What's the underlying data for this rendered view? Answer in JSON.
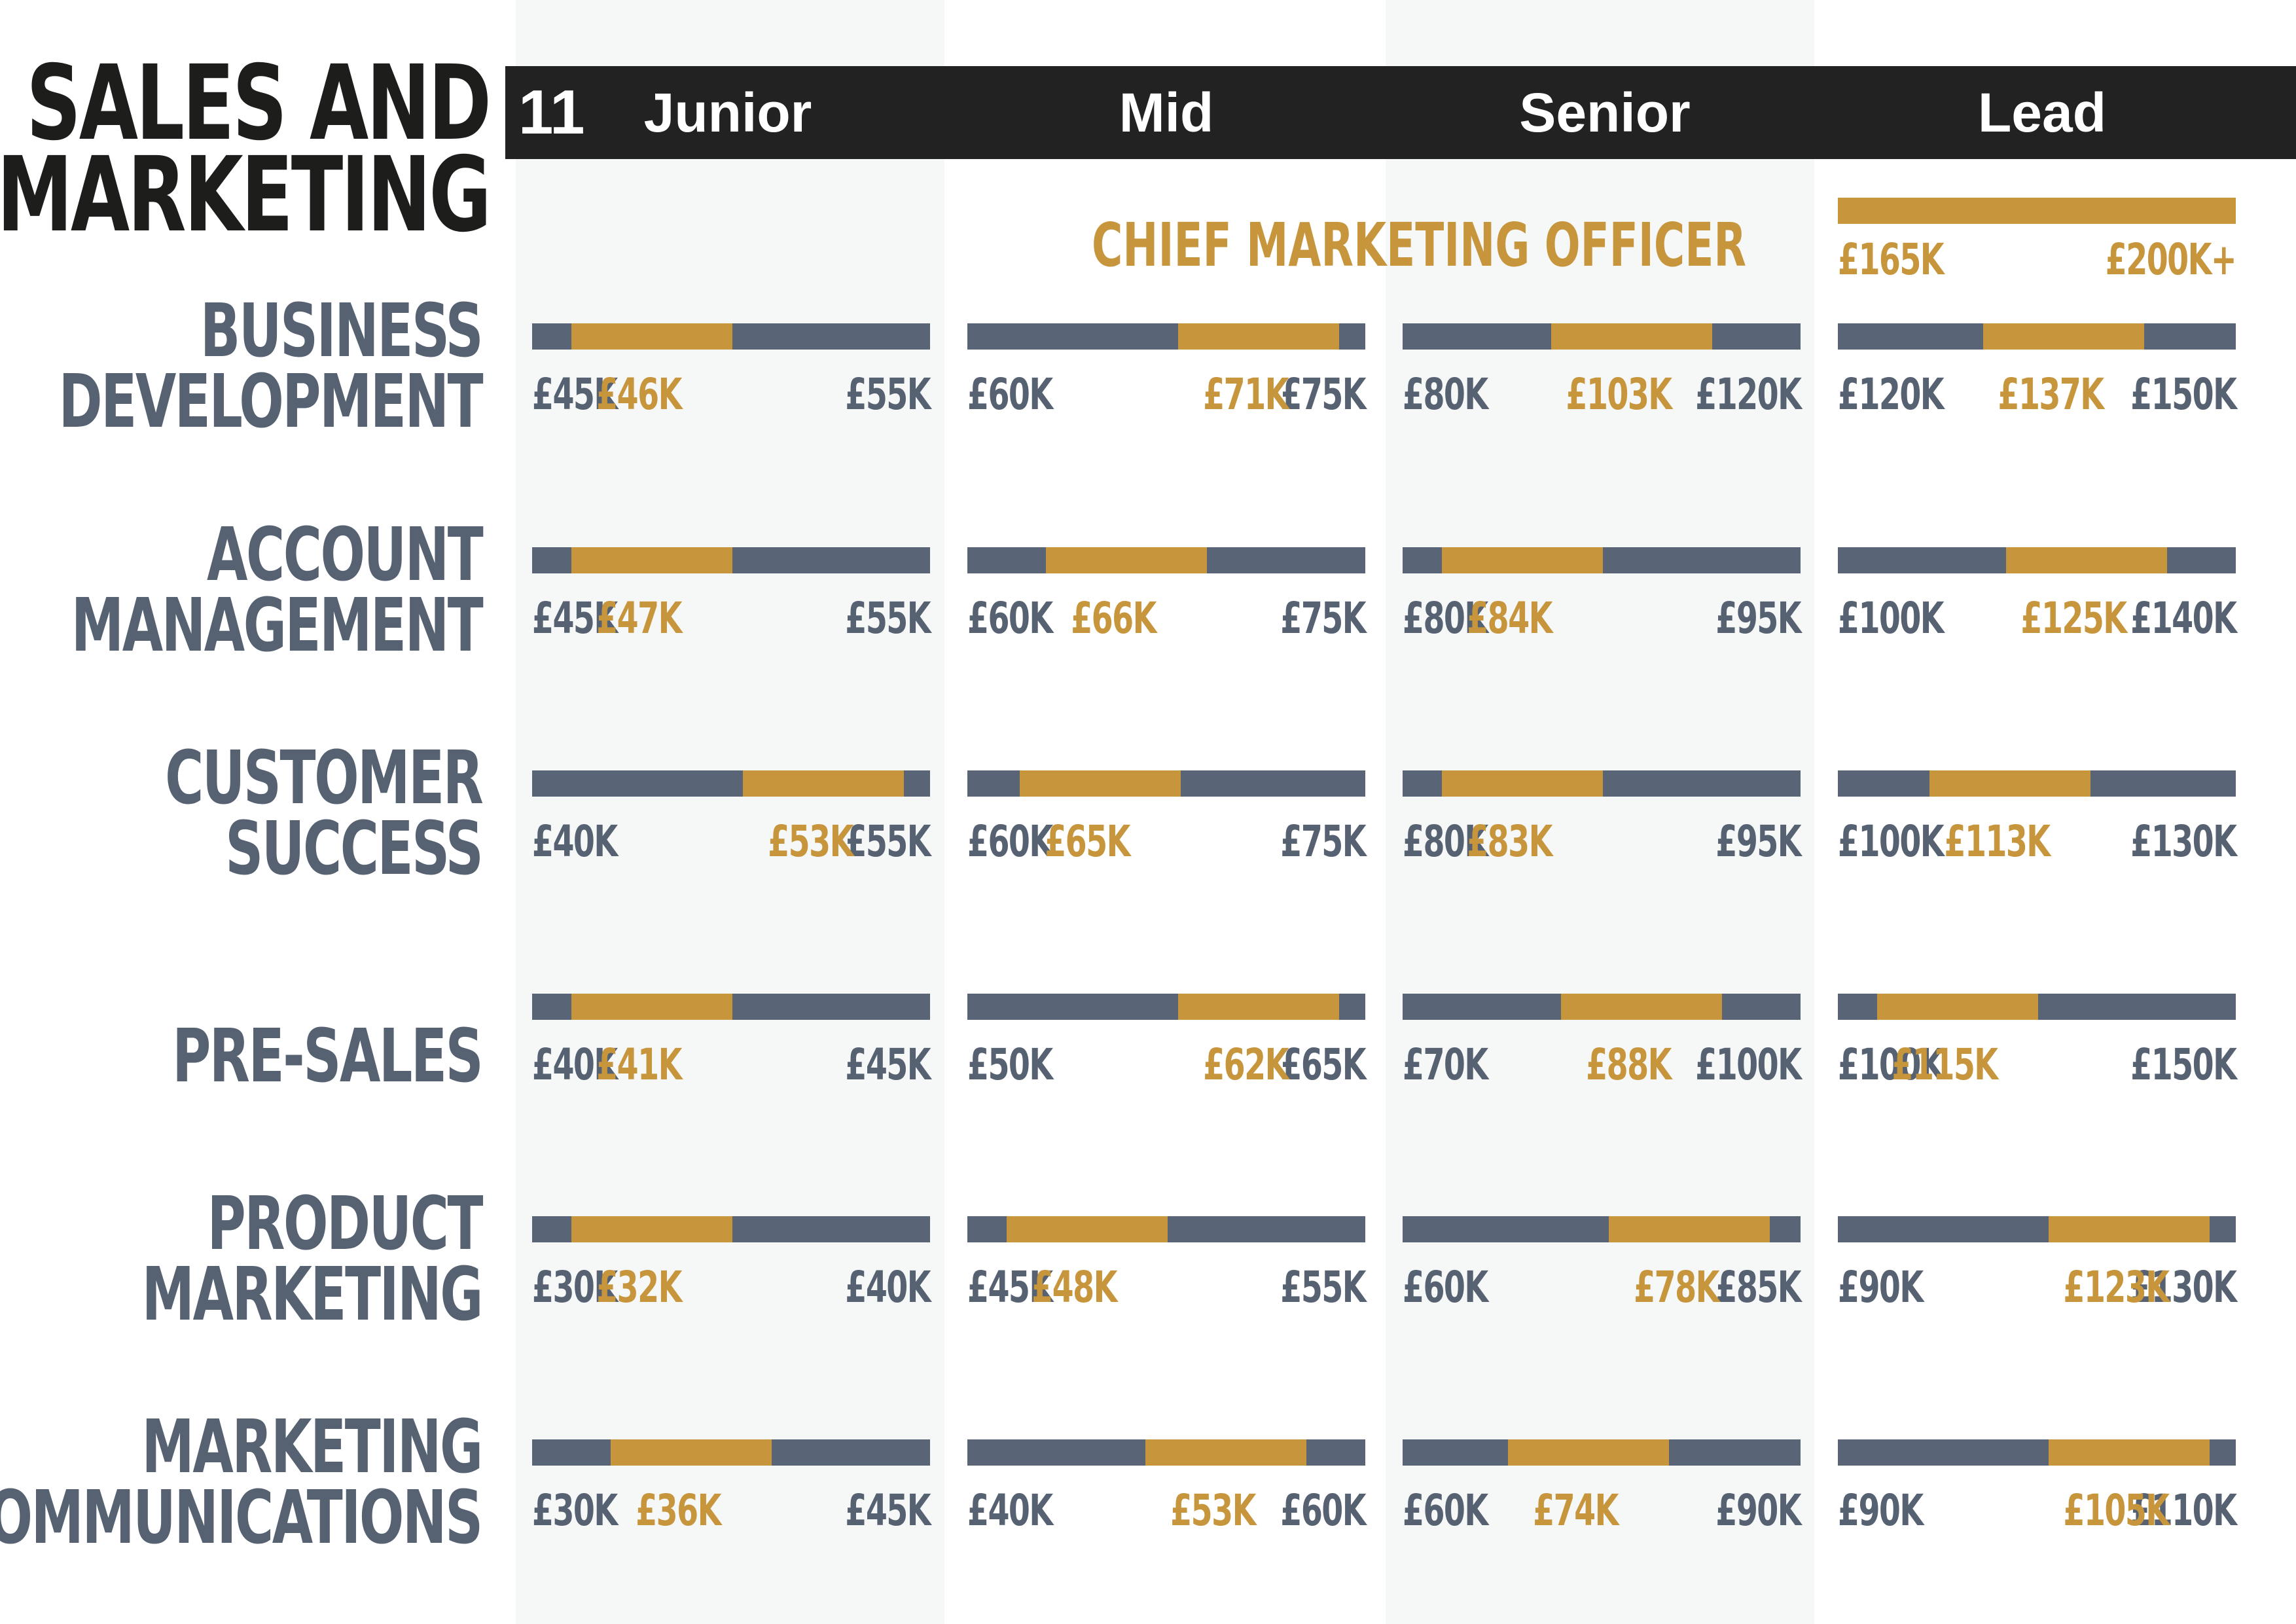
{
  "page": {
    "title_line1": "SALES AND",
    "title_line2": "MARKETING",
    "page_number": "11"
  },
  "colors": {
    "accent_gold": "#c7953b",
    "slate": "#596577",
    "header_black": "#222222",
    "column_shade": "#f6f7f7"
  },
  "chart_data": {
    "type": "range-bar",
    "levels": [
      "Junior",
      "Mid",
      "Senior",
      "Lead"
    ],
    "cmo": {
      "label": "CHIEF MARKETING OFFICER",
      "min": "£165K",
      "max": "£200K+"
    },
    "roles": [
      {
        "label_lines": [
          "BUSINESS",
          "DEVELOPMENT"
        ],
        "ranges": [
          {
            "min": 45,
            "avg": 46,
            "max": 55,
            "min_label": "£45K",
            "avg_label": "£46K",
            "max_label": "£55K"
          },
          {
            "min": 60,
            "avg": 71,
            "max": 75,
            "min_label": "£60K",
            "avg_label": "£71K",
            "max_label": "£75K"
          },
          {
            "min": 80,
            "avg": 103,
            "max": 120,
            "min_label": "£80K",
            "avg_label": "£103K",
            "max_label": "£120K"
          },
          {
            "min": 120,
            "avg": 137,
            "max": 150,
            "min_label": "£120K",
            "avg_label": "£137K",
            "max_label": "£150K"
          }
        ]
      },
      {
        "label_lines": [
          "ACCOUNT",
          "MANAGEMENT"
        ],
        "ranges": [
          {
            "min": 45,
            "avg": 47,
            "max": 55,
            "min_label": "£45K",
            "avg_label": "£47K",
            "max_label": "£55K"
          },
          {
            "min": 60,
            "avg": 66,
            "max": 75,
            "min_label": "£60K",
            "avg_label": "£66K",
            "max_label": "£75K"
          },
          {
            "min": 80,
            "avg": 84,
            "max": 95,
            "min_label": "£80K",
            "avg_label": "£84K",
            "max_label": "£95K"
          },
          {
            "min": 100,
            "avg": 125,
            "max": 140,
            "min_label": "£100K",
            "avg_label": "£125K",
            "max_label": "£140K"
          }
        ]
      },
      {
        "label_lines": [
          "CUSTOMER",
          "SUCCESS"
        ],
        "ranges": [
          {
            "min": 40,
            "avg": 53,
            "max": 55,
            "min_label": "£40K",
            "avg_label": "£53K",
            "max_label": "£55K"
          },
          {
            "min": 60,
            "avg": 65,
            "max": 75,
            "min_label": "£60K",
            "avg_label": "£65K",
            "max_label": "£75K"
          },
          {
            "min": 80,
            "avg": 83,
            "max": 95,
            "min_label": "£80K",
            "avg_label": "£83K",
            "max_label": "£95K"
          },
          {
            "min": 100,
            "avg": 113,
            "max": 130,
            "min_label": "£100K",
            "avg_label": "£113K",
            "max_label": "£130K"
          }
        ]
      },
      {
        "label_lines": [
          "PRE-SALES"
        ],
        "ranges": [
          {
            "min": 40,
            "avg": 41,
            "max": 45,
            "min_label": "£40K",
            "avg_label": "£41K",
            "max_label": "£45K"
          },
          {
            "min": 50,
            "avg": 62,
            "max": 65,
            "min_label": "£50K",
            "avg_label": "£62K",
            "max_label": "£65K"
          },
          {
            "min": 70,
            "avg": 88,
            "max": 100,
            "min_label": "£70K",
            "avg_label": "£88K",
            "max_label": "£100K"
          },
          {
            "min": 100,
            "avg": 115,
            "max": 150,
            "min_label": "£100K",
            "avg_label": "£115K",
            "max_label": "£150K"
          }
        ]
      },
      {
        "label_lines": [
          "PRODUCT",
          "MARKETING"
        ],
        "ranges": [
          {
            "min": 30,
            "avg": 32,
            "max": 40,
            "min_label": "£30K",
            "avg_label": "£32K",
            "max_label": "£40K"
          },
          {
            "min": 45,
            "avg": 48,
            "max": 55,
            "min_label": "£45K",
            "avg_label": "£48K",
            "max_label": "£55K"
          },
          {
            "min": 60,
            "avg": 78,
            "max": 85,
            "min_label": "£60K",
            "avg_label": "£78K",
            "max_label": "£85K"
          },
          {
            "min": 90,
            "avg": 123,
            "max": 130,
            "min_label": "£90K",
            "avg_label": "£123K",
            "max_label": "£130K"
          }
        ]
      },
      {
        "label_lines": [
          "MARKETING",
          "COMMUNICATIONS"
        ],
        "ranges": [
          {
            "min": 30,
            "avg": 36,
            "max": 45,
            "min_label": "£30K",
            "avg_label": "£36K",
            "max_label": "£45K"
          },
          {
            "min": 40,
            "avg": 53,
            "max": 60,
            "min_label": "£40K",
            "avg_label": "£53K",
            "max_label": "£60K"
          },
          {
            "min": 60,
            "avg": 74,
            "max": 90,
            "min_label": "£60K",
            "avg_label": "£74K",
            "max_label": "£90K"
          },
          {
            "min": 90,
            "avg": 105,
            "max": 110,
            "min_label": "£90K",
            "avg_label": "£105K",
            "max_label": "£110K"
          }
        ]
      }
    ]
  }
}
